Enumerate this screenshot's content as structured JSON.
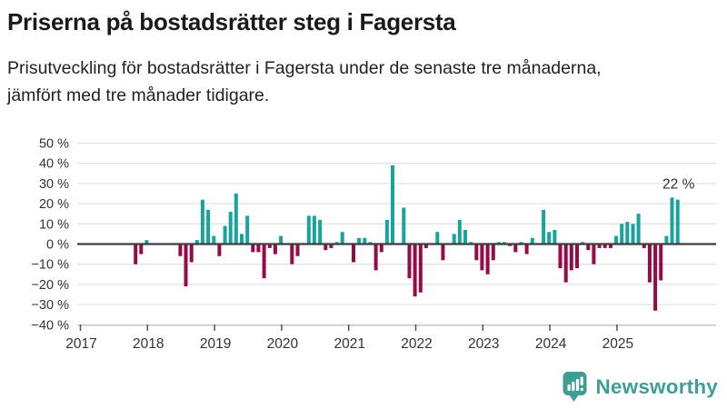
{
  "header": {
    "title": "Priserna på bostadsrätter steg i Fagersta",
    "subtitle": "Prisutveckling för bostadsrätter i Fagersta under de senaste tre månaderna, jämfört med tre månader tidigare."
  },
  "chart_data": {
    "type": "bar",
    "title": "Priserna på bostadsrätter steg i Fagersta",
    "unit": "%",
    "ylim": [
      -40,
      50
    ],
    "ytick_step": 10,
    "ytick_labels": [
      "50 %",
      "40 %",
      "30 %",
      "20 %",
      "10 %",
      "0 %",
      "−10 %",
      "−20 %",
      "−30 %",
      "−40 %"
    ],
    "xtick_labels": [
      "2017",
      "2018",
      "2019",
      "2020",
      "2021",
      "2022",
      "2023",
      "2024",
      "2025"
    ],
    "grid": true,
    "legend": "none",
    "colors": {
      "positive": "#18A39C",
      "negative": "#970A47",
      "zero_line": "#3d3d3d",
      "grid": "#e3e3e3",
      "axis": "#cccccc",
      "tick": "#555555",
      "label": "#333333",
      "annotation": "#2e2e2e"
    },
    "annotation": {
      "text": "22 %",
      "month": "2025-11"
    },
    "series": [
      [
        "2017-10",
        -10
      ],
      [
        "2017-11",
        -5
      ],
      [
        "2017-12",
        2
      ],
      [
        "2018-06",
        -6
      ],
      [
        "2018-07",
        -21
      ],
      [
        "2018-08",
        -9
      ],
      [
        "2018-09",
        2
      ],
      [
        "2018-10",
        22
      ],
      [
        "2018-11",
        17
      ],
      [
        "2018-12",
        4
      ],
      [
        "2019-01",
        -6
      ],
      [
        "2019-02",
        9
      ],
      [
        "2019-03",
        16
      ],
      [
        "2019-04",
        25
      ],
      [
        "2019-05",
        5
      ],
      [
        "2019-06",
        14
      ],
      [
        "2019-07",
        -4
      ],
      [
        "2019-08",
        -4
      ],
      [
        "2019-09",
        -17
      ],
      [
        "2019-10",
        -2
      ],
      [
        "2019-11",
        -5
      ],
      [
        "2019-12",
        4
      ],
      [
        "2020-02",
        -10
      ],
      [
        "2020-03",
        -6
      ],
      [
        "2020-05",
        14
      ],
      [
        "2020-06",
        14
      ],
      [
        "2020-07",
        12
      ],
      [
        "2020-08",
        -3
      ],
      [
        "2020-09",
        -2
      ],
      [
        "2020-10",
        1
      ],
      [
        "2020-11",
        6
      ],
      [
        "2021-01",
        -9
      ],
      [
        "2021-02",
        3
      ],
      [
        "2021-03",
        3
      ],
      [
        "2021-04",
        1
      ],
      [
        "2021-05",
        -13
      ],
      [
        "2021-06",
        -4
      ],
      [
        "2021-07",
        12
      ],
      [
        "2021-08",
        39
      ],
      [
        "2021-10",
        18
      ],
      [
        "2021-11",
        -17
      ],
      [
        "2021-12",
        -26
      ],
      [
        "2022-01",
        -24
      ],
      [
        "2022-02",
        -2
      ],
      [
        "2022-04",
        6
      ],
      [
        "2022-05",
        -8
      ],
      [
        "2022-07",
        5
      ],
      [
        "2022-08",
        12
      ],
      [
        "2022-09",
        7
      ],
      [
        "2022-10",
        1
      ],
      [
        "2022-11",
        -8
      ],
      [
        "2022-12",
        -13
      ],
      [
        "2023-01",
        -15
      ],
      [
        "2023-02",
        -8
      ],
      [
        "2023-03",
        1
      ],
      [
        "2023-04",
        1
      ],
      [
        "2023-05",
        -1
      ],
      [
        "2023-06",
        -4
      ],
      [
        "2023-07",
        1
      ],
      [
        "2023-08",
        -5
      ],
      [
        "2023-09",
        3
      ],
      [
        "2023-11",
        17
      ],
      [
        "2023-12",
        6
      ],
      [
        "2024-01",
        7
      ],
      [
        "2024-02",
        -12
      ],
      [
        "2024-03",
        -19
      ],
      [
        "2024-04",
        -13
      ],
      [
        "2024-05",
        -12
      ],
      [
        "2024-06",
        1
      ],
      [
        "2024-07",
        -3
      ],
      [
        "2024-08",
        -10
      ],
      [
        "2024-09",
        -2
      ],
      [
        "2024-10",
        -2
      ],
      [
        "2024-11",
        -2
      ],
      [
        "2024-12",
        4
      ],
      [
        "2025-01",
        10
      ],
      [
        "2025-02",
        11
      ],
      [
        "2025-03",
        10
      ],
      [
        "2025-04",
        15
      ],
      [
        "2025-05",
        -2
      ],
      [
        "2025-06",
        -19
      ],
      [
        "2025-07",
        -33
      ],
      [
        "2025-08",
        -18
      ],
      [
        "2025-09",
        4
      ],
      [
        "2025-10",
        23
      ],
      [
        "2025-11",
        22
      ]
    ]
  },
  "footer": {
    "brand": "Newsworthy",
    "logo_icon": "newsworthy-bubble-barchart-icon"
  }
}
